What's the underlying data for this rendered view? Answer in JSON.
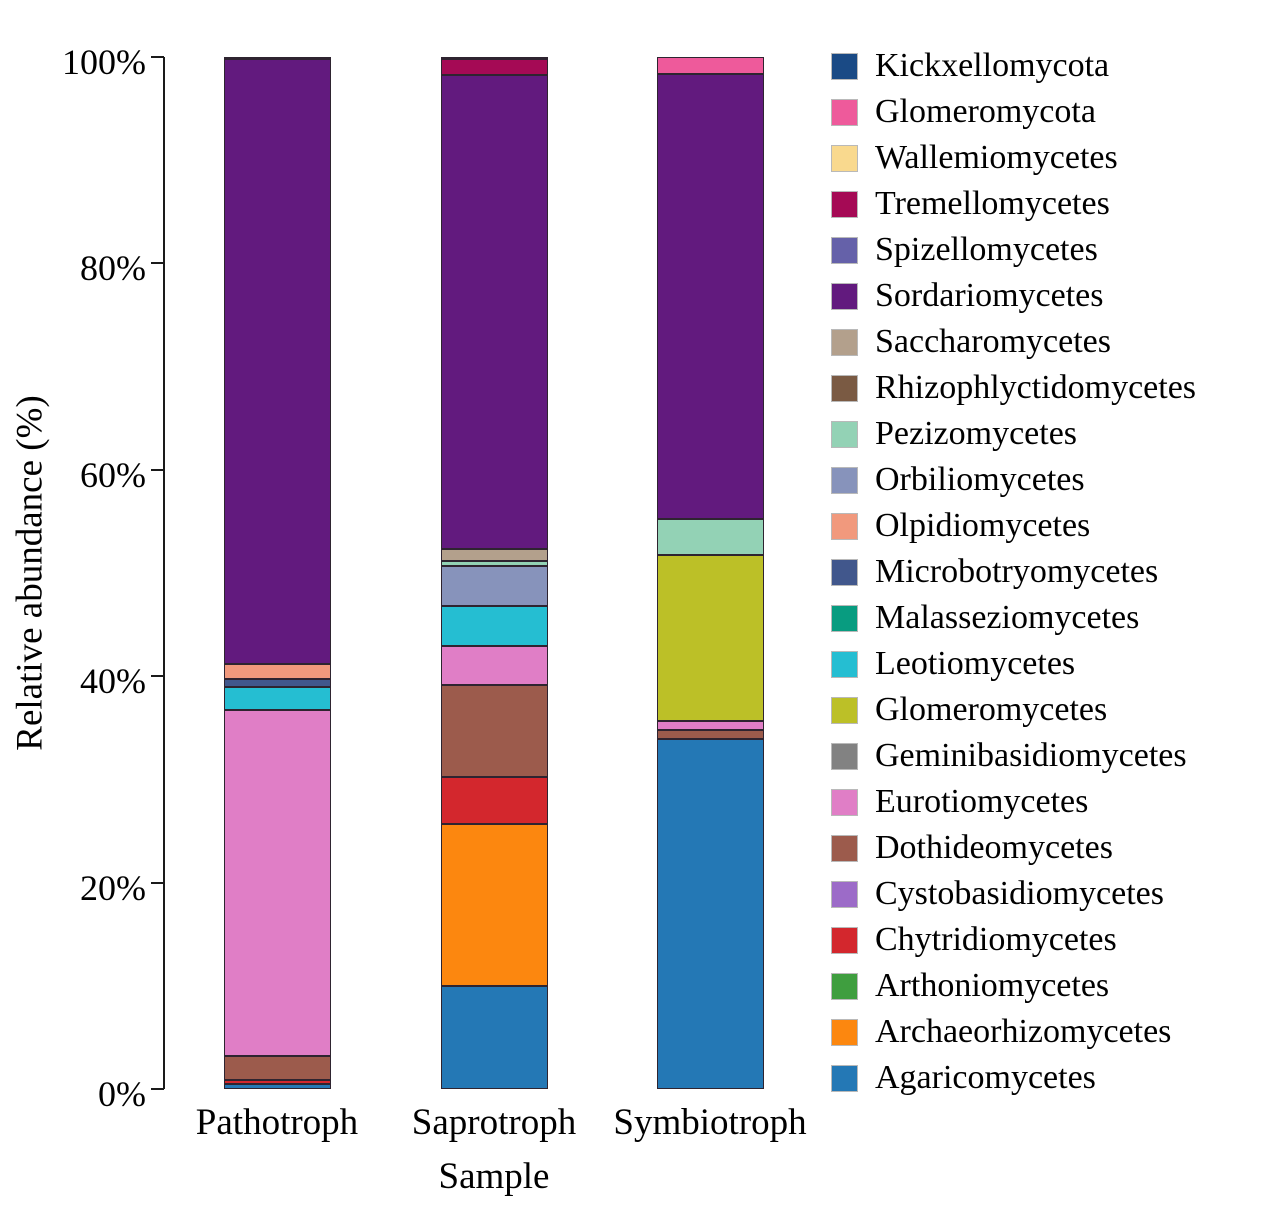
{
  "chart_data": {
    "type": "bar",
    "stacked": true,
    "orientation": "vertical",
    "title": "",
    "xlabel": "Sample",
    "ylabel": "Relative abundance (%)",
    "categories": [
      "Pathotroph",
      "Saprotroph",
      "Symbiotroph"
    ],
    "y_ticks": [
      "0%",
      "20%",
      "40%",
      "60%",
      "80%",
      "100%"
    ],
    "y_tick_values": [
      0,
      20,
      40,
      60,
      80,
      100
    ],
    "ylim": [
      0,
      100
    ],
    "grid": false,
    "legend_position": "right",
    "stacking_note": "legend listed top-to-bottom equals stack top-to-bottom; values are percent per category [Pathotroph, Saprotroph, Symbiotroph]",
    "series": [
      {
        "name": "Kickxellomycota",
        "color": "#1a4a85",
        "values": [
          0,
          0.2,
          0
        ]
      },
      {
        "name": "Glomeromycota",
        "color": "#ee5a9b",
        "values": [
          0,
          0,
          1.6
        ]
      },
      {
        "name": "Wallemiomycetes",
        "color": "#f9d98e",
        "values": [
          0,
          0,
          0
        ]
      },
      {
        "name": "Tremellomycetes",
        "color": "#a50a55",
        "values": [
          0.2,
          1.5,
          0
        ]
      },
      {
        "name": "Spizellomycetes",
        "color": "#6561a9",
        "values": [
          0,
          0,
          0
        ]
      },
      {
        "name": "Sordariomycetes",
        "color": "#621a7e",
        "values": [
          58.6,
          46.0,
          43.2
        ]
      },
      {
        "name": "Saccharomycetes",
        "color": "#b3a08c",
        "values": [
          0,
          1.1,
          0
        ]
      },
      {
        "name": "Rhizophlyctidomycetes",
        "color": "#7a5a43",
        "values": [
          0,
          0,
          0
        ]
      },
      {
        "name": "Pezizomycetes",
        "color": "#93d2b5",
        "values": [
          0,
          0.5,
          3.5
        ]
      },
      {
        "name": "Orbiliomycetes",
        "color": "#8793bb",
        "values": [
          0,
          3.9,
          0
        ]
      },
      {
        "name": "Olpidiomycetes",
        "color": "#f1997d",
        "values": [
          1.5,
          0,
          0
        ]
      },
      {
        "name": "Microbotryomycetes",
        "color": "#41578c",
        "values": [
          0.7,
          0,
          0
        ]
      },
      {
        "name": "Malasseziomycetes",
        "color": "#089c80",
        "values": [
          0,
          0,
          0
        ]
      },
      {
        "name": "Leotiomycetes",
        "color": "#25bed2",
        "values": [
          2.3,
          3.9,
          0
        ]
      },
      {
        "name": "Glomeromycetes",
        "color": "#bcc027",
        "values": [
          0,
          0,
          16.0
        ]
      },
      {
        "name": "Geminibasidiomycetes",
        "color": "#828282",
        "values": [
          0,
          0,
          0
        ]
      },
      {
        "name": "Eurotiomycetes",
        "color": "#e07ec6",
        "values": [
          33.5,
          3.8,
          0.9
        ]
      },
      {
        "name": "Dothideomycetes",
        "color": "#9c5b4c",
        "values": [
          2.3,
          8.9,
          0.9
        ]
      },
      {
        "name": "Cystobasidiomycetes",
        "color": "#9c6bc8",
        "values": [
          0,
          0,
          0
        ]
      },
      {
        "name": "Chytridiomycetes",
        "color": "#d3272d",
        "values": [
          0.4,
          4.5,
          0
        ]
      },
      {
        "name": "Arthoniomycetes",
        "color": "#3f9e3f",
        "values": [
          0,
          0,
          0
        ]
      },
      {
        "name": "Archaeorhizomycetes",
        "color": "#fc870f",
        "values": [
          0,
          15.7,
          0
        ]
      },
      {
        "name": "Agaricomycetes",
        "color": "#2478b5",
        "values": [
          0.5,
          10.0,
          33.9
        ]
      }
    ]
  }
}
